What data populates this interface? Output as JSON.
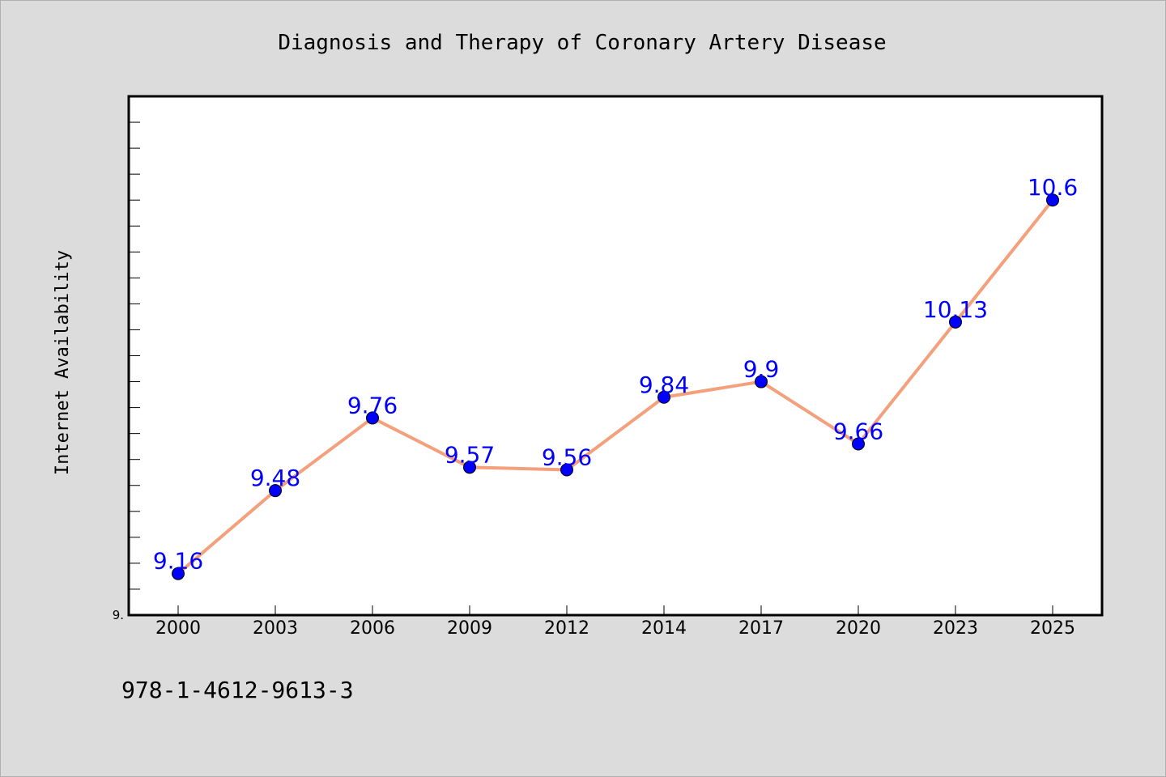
{
  "chart_data": {
    "type": "line",
    "title": "Diagnosis and Therapy of Coronary Artery Disease",
    "xlabel": "",
    "ylabel": "Internet Availability",
    "categories": [
      "2000",
      "2003",
      "2006",
      "2009",
      "2012",
      "2014",
      "2017",
      "2020",
      "2023",
      "2025"
    ],
    "series": [
      {
        "values": [
          9.16,
          9.48,
          9.76,
          9.57,
          9.56,
          9.84,
          9.9,
          9.66,
          10.13,
          10.6
        ]
      }
    ],
    "data_labels": [
      "9.16",
      "9.48",
      "9.76",
      "9.57",
      "9.56",
      "9.84",
      "9.9",
      "9.66",
      "10.13",
      "10.6"
    ],
    "ytick_labels": [
      "9."
    ],
    "ylim": [
      9.0,
      11.0
    ],
    "grid": false,
    "colors": {
      "line": "#f4a07c",
      "marker": "#0000ff",
      "label": "#0000ff",
      "plot_bg": "#ffffff",
      "page_bg": "#dcdcdc"
    }
  },
  "footer": {
    "isbn": "978-1-4612-9613-3"
  }
}
